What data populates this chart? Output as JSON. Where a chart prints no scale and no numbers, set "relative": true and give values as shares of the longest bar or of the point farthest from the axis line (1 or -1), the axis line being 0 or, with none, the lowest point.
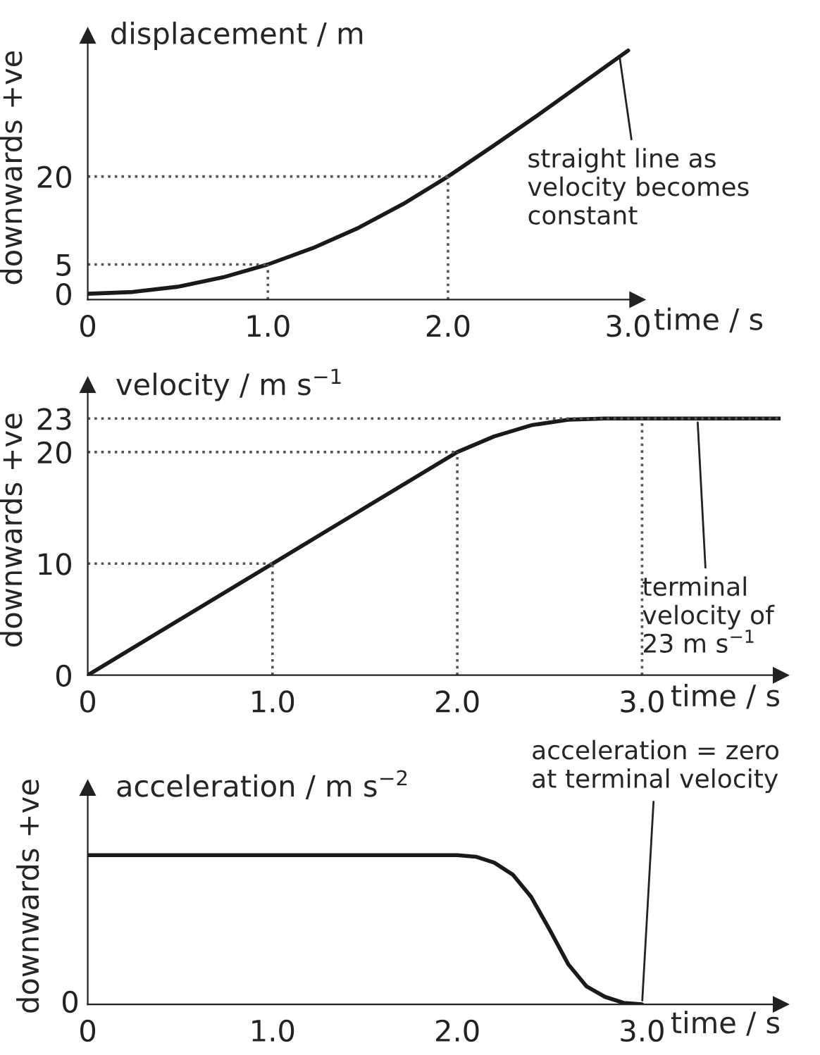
{
  "chart_data": [
    {
      "type": "line",
      "title": "displacement / m",
      "xlabel": "time / s",
      "ylabel": "downwards +ve",
      "x": [
        0,
        0.25,
        0.5,
        0.75,
        1,
        1.25,
        1.5,
        1.75,
        2,
        2.25,
        2.5,
        2.75,
        3
      ],
      "series": [
        {
          "color": "#1a1a1a",
          "values": [
            0,
            0.3,
            1.2,
            2.8,
            5,
            7.8,
            11.2,
            15.3,
            20,
            25.2,
            30.5,
            36,
            41.5
          ]
        }
      ],
      "xlim": [
        0,
        3.05
      ],
      "ylim": [
        -1,
        44
      ],
      "xticks": [
        0,
        {
          "value": 1,
          "label": "1.0"
        },
        {
          "value": 2,
          "label": "2.0"
        },
        {
          "value": 3,
          "label": "3.0"
        }
      ],
      "yticks": [
        0,
        5,
        20
      ],
      "ref_lines": [
        {
          "axis": "y",
          "value": 5,
          "color": "#555555",
          "line_style": "dotted"
        },
        {
          "axis": "x",
          "value": 1,
          "color": "#555555",
          "line_style": "dotted"
        },
        {
          "axis": "y",
          "value": 20,
          "color": "#555555",
          "line_style": "dotted"
        },
        {
          "axis": "x",
          "value": 2,
          "color": "#555555",
          "line_style": "dotted"
        }
      ],
      "annotations": [
        {
          "text": "straight line as\nvelocity becomes\nconstant",
          "x": 2.95,
          "y": 41
        }
      ],
      "line_style": "solid",
      "grid": false
    },
    {
      "type": "line",
      "title": "velocity / m s$^{−1}$",
      "xlabel": "time / s",
      "ylabel": "downwards +ve",
      "x": [
        0,
        1,
        2,
        2.2,
        2.4,
        2.6,
        2.8,
        3,
        3.3,
        3.75
      ],
      "series": [
        {
          "color": "#1a1a1a",
          "values": [
            0,
            10,
            20,
            21.4,
            22.4,
            22.9,
            23,
            23,
            23,
            23
          ]
        }
      ],
      "xlim": [
        0,
        3.75
      ],
      "ylim": [
        0,
        26
      ],
      "xticks": [
        0,
        {
          "value": 1,
          "label": "1.0"
        },
        {
          "value": 2,
          "label": "2.0"
        },
        {
          "value": 3,
          "label": "3.0"
        }
      ],
      "yticks": [
        0,
        10,
        20,
        23
      ],
      "ref_lines": [
        {
          "axis": "y",
          "value": 10,
          "color": "#555555",
          "line_style": "dotted"
        },
        {
          "axis": "x",
          "value": 1,
          "color": "#555555",
          "line_style": "dotted"
        },
        {
          "axis": "y",
          "value": 20,
          "color": "#555555",
          "line_style": "dotted"
        },
        {
          "axis": "x",
          "value": 2,
          "color": "#555555",
          "line_style": "dotted"
        },
        {
          "axis": "y",
          "value": 23,
          "color": "#555555",
          "line_style": "dotted"
        },
        {
          "axis": "x",
          "value": 3,
          "color": "#555555",
          "line_style": "dotted"
        }
      ],
      "annotations": [
        {
          "text": "terminal\nvelocity of\n23 m s$^{−1}$",
          "x": 3.3,
          "y": 23
        }
      ],
      "line_style": "solid",
      "grid": false
    },
    {
      "type": "line",
      "title": "acceleration / m s$^{−2}$",
      "xlabel": "time / s",
      "ylabel": "downwards +ve",
      "relative": true,
      "x": [
        0,
        1,
        2,
        2.1,
        2.2,
        2.3,
        2.4,
        2.5,
        2.6,
        2.7,
        2.8,
        2.9,
        3
      ],
      "series": [
        {
          "color": "#1a1a1a",
          "values": [
            1,
            1,
            1,
            0.99,
            0.95,
            0.87,
            0.72,
            0.5,
            0.27,
            0.12,
            0.05,
            0.01,
            0
          ]
        }
      ],
      "xlim": [
        0,
        3.75
      ],
      "xticks": [
        0,
        {
          "value": 1,
          "label": "1.0"
        },
        {
          "value": 2,
          "label": "2.0"
        },
        {
          "value": 3,
          "label": "3.0"
        }
      ],
      "annotations": [
        {
          "text": "acceleration = zero\nat terminal velocity",
          "x": 3,
          "y": 0
        },
        "0"
      ],
      "line_style": "solid",
      "grid": false
    }
  ]
}
